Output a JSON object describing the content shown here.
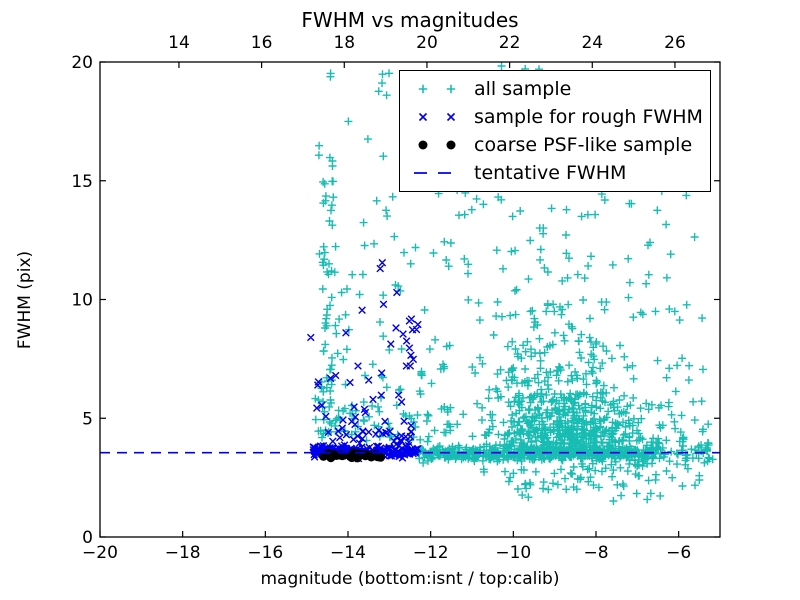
{
  "colors": {
    "all_sample": "#17BDB3",
    "rough_fwhm": "#0000EE",
    "psf_sample": "#000000",
    "tentative_line": "#0000EE",
    "frame": "#000000",
    "background": "#FFFFFF"
  },
  "legend": {
    "entries": [
      {
        "label": "all sample",
        "marker": "plus",
        "color": "#17BDB3"
      },
      {
        "label": "sample for rough FWHM",
        "marker": "x",
        "color": "#0000EE"
      },
      {
        "label": "coarse PSF-like sample",
        "marker": "dot",
        "color": "#000000"
      },
      {
        "label": "tentative FWHM",
        "marker": "dash",
        "color": "#0000EE"
      }
    ]
  },
  "chart_data": {
    "type": "scatter",
    "title": "FWHM vs magnitudes",
    "xlabel": "magnitude (bottom:isnt / top:calib)",
    "ylabel": "FWHM (pix)",
    "xlim": [
      -20,
      -5
    ],
    "ylim": [
      0,
      20
    ],
    "x_ticks_bottom": [
      -20,
      -18,
      -16,
      -14,
      -12,
      -10,
      -8,
      -6
    ],
    "x_ticks_top": [
      14,
      16,
      18,
      20,
      22,
      24,
      26
    ],
    "top_axis_offset": 32.09,
    "y_ticks": [
      0,
      5,
      10,
      15,
      20
    ],
    "grid": false,
    "legend_position": "upper right",
    "tentative_fwhm": 3.55,
    "seed": 20,
    "series": [
      {
        "name": "all sample",
        "marker": "plus",
        "color": "#17BDB3",
        "clusters": [
          {
            "n": 430,
            "x": {
              "d": "u",
              "a": -12.3,
              "b": -6.55
            },
            "y": {
              "d": "g",
              "a": 3.5,
              "b": 0.14,
              "min": 3.1,
              "max": 3.95
            }
          },
          {
            "n": 60,
            "x": {
              "d": "u",
              "a": -7.0,
              "b": -5.15
            },
            "y": {
              "d": "g",
              "a": 3.55,
              "b": 0.28,
              "min": 2.7,
              "max": 4.4
            }
          },
          {
            "n": 520,
            "x": {
              "d": "g",
              "a": -8.75,
              "b": 1.0,
              "min": -11.6,
              "max": -5.9
            },
            "y": {
              "d": "e",
              "a": 3.4,
              "b": 1.3,
              "max": 9.5
            }
          },
          {
            "n": 230,
            "x": {
              "d": "g",
              "a": -9.1,
              "b": 0.9,
              "min": -11.3,
              "max": -6.3
            },
            "y": {
              "d": "e",
              "a": 4.2,
              "b": 2.2,
              "max": 13.5
            }
          },
          {
            "n": 90,
            "x": {
              "d": "u",
              "a": -11.6,
              "b": -5.6
            },
            "y": {
              "d": "u",
              "a": 9.0,
              "b": 17.5
            }
          },
          {
            "n": 150,
            "x": {
              "d": "u",
              "a": -14.8,
              "b": -11.5
            },
            "y": {
              "d": "e",
              "a": 4.0,
              "b": 3.0,
              "max": 17.5
            }
          },
          {
            "n": 55,
            "x": {
              "d": "g",
              "a": -14.52,
              "b": 0.1,
              "min": -14.8,
              "max": -14.3
            },
            "y": {
              "d": "u",
              "a": 3.7,
              "b": 19.6
            }
          },
          {
            "n": 14,
            "x": {
              "d": "u",
              "a": -10.7,
              "b": -9.3
            },
            "y": {
              "d": "u",
              "a": 18.3,
              "b": 19.85
            }
          },
          {
            "n": 5,
            "x": {
              "d": "g",
              "a": -13.3,
              "b": 0.2,
              "min": -13.6,
              "max": -13.0
            },
            "y": {
              "d": "u",
              "a": 18.6,
              "b": 19.6
            }
          },
          {
            "n": 80,
            "x": {
              "d": "g",
              "a": -8.2,
              "b": 1.4,
              "min": -11.2,
              "max": -5.5
            },
            "y": {
              "d": "u",
              "a": 2.0,
              "b": 3.3
            }
          },
          {
            "n": 8,
            "x": {
              "d": "u",
              "a": -10.0,
              "b": -6.2
            },
            "y": {
              "d": "u",
              "a": 1.5,
              "b": 2.0
            }
          },
          {
            "n": 30,
            "x": {
              "d": "u",
              "a": -6.6,
              "b": -5.1
            },
            "y": {
              "d": "e",
              "a": 3.8,
              "b": 1.6,
              "max": 9.5
            }
          }
        ],
        "points": []
      },
      {
        "name": "sample for rough FWHM",
        "marker": "x",
        "color": "#0000EE",
        "clusters": [
          {
            "n": 190,
            "x": {
              "d": "u",
              "a": -14.85,
              "b": -12.3
            },
            "y": {
              "d": "g",
              "a": 3.6,
              "b": 0.12,
              "min": 3.3,
              "max": 3.95
            }
          },
          {
            "n": 25,
            "x": {
              "d": "u",
              "a": -14.6,
              "b": -12.4
            },
            "y": {
              "d": "u",
              "a": 3.95,
              "b": 4.5
            }
          },
          {
            "n": 30,
            "x": {
              "d": "u",
              "a": -14.85,
              "b": -12.35
            },
            "y": {
              "d": "e",
              "a": 4.4,
              "b": 1.2,
              "max": 7.2
            }
          },
          {
            "n": 12,
            "x": {
              "d": "u",
              "a": -13.05,
              "b": -12.3
            },
            "y": {
              "d": "u",
              "a": 7.4,
              "b": 9.2
            }
          }
        ],
        "points": [
          [
            -13.17,
            11.55
          ],
          [
            -13.22,
            11.3
          ],
          [
            -12.82,
            10.3
          ],
          [
            -13.14,
            9.8
          ],
          [
            -13.66,
            9.55
          ],
          [
            -14.9,
            8.4
          ],
          [
            -14.05,
            8.6
          ]
        ]
      },
      {
        "name": "coarse PSF-like sample",
        "marker": "dot",
        "color": "#000000",
        "clusters": [
          {
            "n": 9,
            "x": {
              "d": "u",
              "a": -14.6,
              "b": -14.1
            },
            "y": {
              "d": "g",
              "a": 3.42,
              "b": 0.06,
              "min": 3.3,
              "max": 3.6
            }
          },
          {
            "n": 8,
            "x": {
              "d": "u",
              "a": -14.02,
              "b": -13.66
            },
            "y": {
              "d": "g",
              "a": 3.42,
              "b": 0.06,
              "min": 3.3,
              "max": 3.6
            }
          },
          {
            "n": 9,
            "x": {
              "d": "u",
              "a": -13.6,
              "b": -13.16
            },
            "y": {
              "d": "g",
              "a": 3.42,
              "b": 0.06,
              "min": 3.3,
              "max": 3.6
            }
          }
        ],
        "points": []
      }
    ]
  }
}
